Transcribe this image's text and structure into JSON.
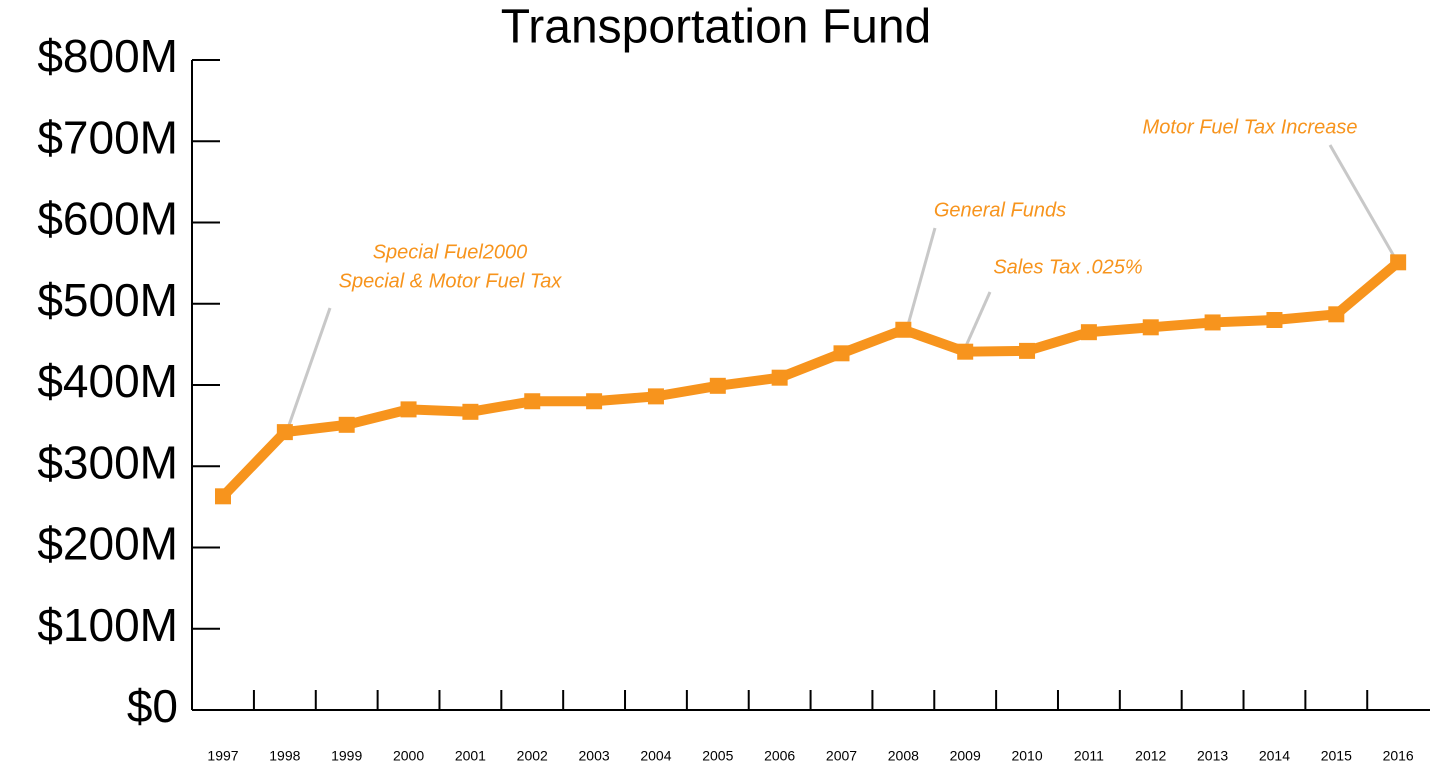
{
  "chart_data": {
    "type": "line",
    "title": "Transportation Fund",
    "categories": [
      "1997",
      "1998",
      "1999",
      "2000",
      "2001",
      "2002",
      "2003",
      "2004",
      "2005",
      "2006",
      "2007",
      "2008",
      "2009",
      "2010",
      "2011",
      "2012",
      "2013",
      "2014",
      "2015",
      "2016"
    ],
    "series": [
      {
        "color": "#f7941d",
        "values": [
          263,
          342,
          351,
          370,
          367,
          380,
          380,
          386,
          399,
          409,
          439,
          468,
          441,
          442,
          465,
          471,
          477,
          480,
          487,
          551
        ]
      }
    ],
    "ylim": [
      0,
      800
    ],
    "yticks": [
      {
        "value": 0,
        "label": "$0"
      },
      {
        "value": 100,
        "label": "$100M"
      },
      {
        "value": 200,
        "label": "$200M"
      },
      {
        "value": 300,
        "label": "$300M"
      },
      {
        "value": 400,
        "label": "$400M"
      },
      {
        "value": 500,
        "label": "$500M"
      },
      {
        "value": 600,
        "label": "$600M"
      },
      {
        "value": 700,
        "label": "$700M"
      },
      {
        "value": 800,
        "label": "$800M"
      }
    ],
    "annotations": [
      {
        "lines": [
          "Special Fuel2000",
          "Special & Motor Fuel Tax"
        ],
        "x": "1998"
      },
      {
        "lines": [
          "General Funds"
        ],
        "x": "2008"
      },
      {
        "lines": [
          "Sales Tax .025%"
        ],
        "x": "2009"
      },
      {
        "lines": [
          "Motor Fuel Tax Increase"
        ],
        "x": "2016"
      }
    ]
  }
}
